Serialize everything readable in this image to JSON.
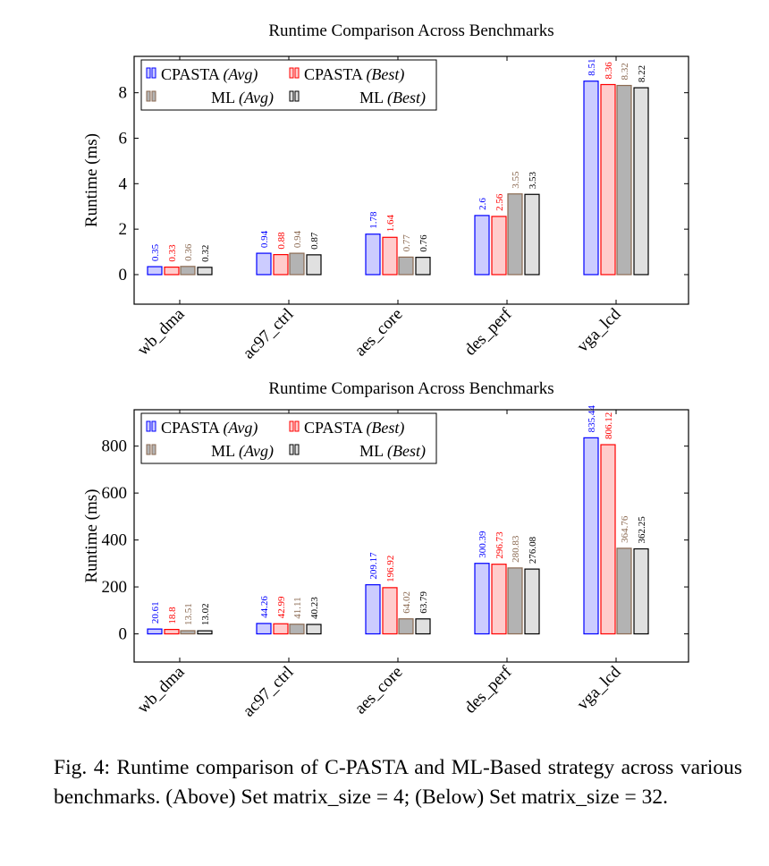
{
  "chart_data": [
    {
      "type": "bar",
      "title": "Runtime Comparison Across Benchmarks",
      "xlabel": "",
      "ylabel": "Runtime (ms)",
      "categories": [
        "wb_dma",
        "ac97_ctrl",
        "aes_core",
        "des_perf",
        "vga_lcd"
      ],
      "ylim": [
        -1.3,
        9.6
      ],
      "yticks": [
        0,
        2,
        4,
        6,
        8
      ],
      "series": [
        {
          "name": "CPASTA",
          "style": "(Avg)",
          "fill": "#ccccff",
          "stroke": "#0000ff",
          "label_color": "#0000ff",
          "values": [
            0.35,
            0.94,
            1.78,
            2.6,
            8.51
          ],
          "labels": [
            "0.35",
            "0.94",
            "1.78",
            "2.6",
            "8.51"
          ]
        },
        {
          "name": "CPASTA",
          "style": "(Best)",
          "fill": "#ffcccc",
          "stroke": "#ff0000",
          "label_color": "#ff0000",
          "values": [
            0.33,
            0.88,
            1.64,
            2.56,
            8.36
          ],
          "labels": [
            "0.33",
            "0.88",
            "1.64",
            "2.56",
            "8.36"
          ]
        },
        {
          "name": "ML",
          "style": "(Avg)",
          "fill": "#b3b3b3",
          "stroke": "#8b6a52",
          "label_color": "#8b6a52",
          "values": [
            0.36,
            0.94,
            0.77,
            3.55,
            8.32
          ],
          "labels": [
            "0.36",
            "0.94",
            "0.77",
            "3.55",
            "8.32"
          ]
        },
        {
          "name": "ML",
          "style": "(Best)",
          "fill": "#e0e0e0",
          "stroke": "#000000",
          "label_color": "#000000",
          "values": [
            0.32,
            0.87,
            0.76,
            3.53,
            8.22
          ],
          "labels": [
            "0.32",
            "0.87",
            "0.76",
            "3.53",
            "8.22"
          ]
        }
      ],
      "legend_position": "top-left",
      "grid": false
    },
    {
      "type": "bar",
      "title": "Runtime Comparison Across Benchmarks",
      "xlabel": "",
      "ylabel": "Runtime (ms)",
      "categories": [
        "wb_dma",
        "ac97_ctrl",
        "aes_core",
        "des_perf",
        "vga_lcd"
      ],
      "ylim": [
        -120,
        955
      ],
      "yticks": [
        0,
        200,
        400,
        600,
        800
      ],
      "series": [
        {
          "name": "CPASTA",
          "style": "(Avg)",
          "fill": "#ccccff",
          "stroke": "#0000ff",
          "label_color": "#0000ff",
          "values": [
            20.61,
            44.26,
            209.17,
            300.39,
            835.44
          ],
          "labels": [
            "20.61",
            "44.26",
            "209.17",
            "300.39",
            "835.44"
          ]
        },
        {
          "name": "CPASTA",
          "style": "(Best)",
          "fill": "#ffcccc",
          "stroke": "#ff0000",
          "label_color": "#ff0000",
          "values": [
            18.8,
            42.99,
            196.92,
            296.73,
            806.12
          ],
          "labels": [
            "18.8",
            "42.99",
            "196.92",
            "296.73",
            "806.12"
          ]
        },
        {
          "name": "ML",
          "style": "(Avg)",
          "fill": "#b3b3b3",
          "stroke": "#8b6a52",
          "label_color": "#8b6a52",
          "values": [
            13.51,
            41.11,
            64.02,
            280.83,
            364.76
          ],
          "labels": [
            "13.51",
            "41.11",
            "64.02",
            "280.83",
            "364.76"
          ]
        },
        {
          "name": "ML",
          "style": "(Best)",
          "fill": "#e0e0e0",
          "stroke": "#000000",
          "label_color": "#000000",
          "values": [
            13.02,
            40.23,
            63.79,
            276.08,
            362.25
          ],
          "labels": [
            "13.02",
            "40.23",
            "63.79",
            "276.08",
            "362.25"
          ]
        }
      ],
      "legend_position": "top-left",
      "grid": false
    }
  ],
  "caption": "Fig. 4: Runtime comparison of C-PASTA and ML-Based strategy across various benchmarks. (Above) Set matrix_size = 4; (Below) Set matrix_size = 32."
}
